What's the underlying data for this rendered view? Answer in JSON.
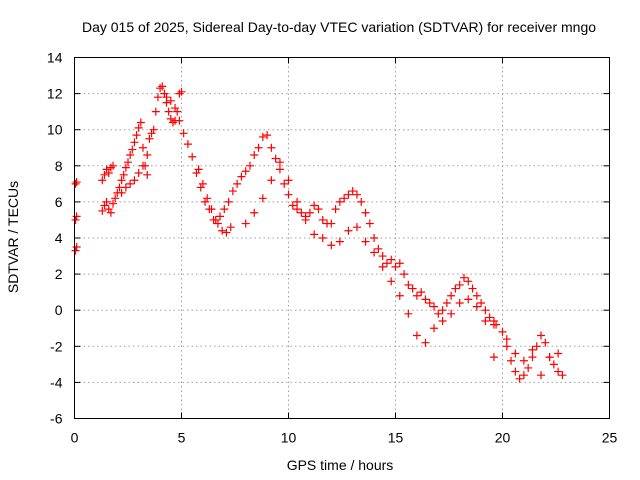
{
  "chart_data": {
    "type": "scatter",
    "title": "Day 015 of 2025, Sidereal Day-to-day VTEC variation (SDTVAR) for receiver mngo",
    "xlabel": "GPS time / hours",
    "ylabel": "SDTVAR / TECUs",
    "xlim": [
      0,
      25
    ],
    "ylim": [
      -6,
      14
    ],
    "xticks": [
      0,
      5,
      10,
      15,
      20,
      25
    ],
    "yticks": [
      -6,
      -4,
      -2,
      0,
      2,
      4,
      6,
      8,
      10,
      12,
      14
    ],
    "xtick_labels": [
      "0",
      "5",
      "10",
      "15",
      "20",
      "25"
    ],
    "ytick_labels": [
      "-6",
      "-4",
      "-2",
      "0",
      "2",
      "4",
      "6",
      "8",
      "10",
      "12",
      "14"
    ],
    "grid": true,
    "marker": "plus",
    "color": "#ff0000",
    "series": [
      {
        "name": "SDTVAR",
        "x": [
          0.05,
          0.1,
          0.05,
          0.1,
          0.05,
          0.1,
          1.3,
          1.4,
          1.5,
          1.6,
          1.7,
          1.8,
          1.3,
          1.4,
          1.5,
          1.6,
          1.7,
          1.8,
          1.9,
          2.0,
          2.1,
          2.2,
          2.3,
          2.4,
          2.5,
          2.6,
          2.7,
          2.8,
          2.9,
          3.0,
          3.1,
          3.2,
          3.3,
          3.4,
          2.2,
          2.4,
          2.6,
          2.8,
          3.0,
          3.2,
          3.4,
          3.5,
          3.6,
          3.7,
          3.8,
          3.9,
          4.0,
          4.1,
          4.2,
          4.3,
          4.4,
          4.5,
          4.6,
          4.7,
          4.8,
          4.9,
          5.0,
          4.3,
          4.5,
          4.7,
          4.9,
          5.1,
          5.3,
          5.5,
          5.7,
          5.9,
          6.1,
          6.3,
          6.5,
          6.7,
          6.9,
          7.1,
          7.3,
          5.8,
          6.0,
          6.2,
          6.4,
          6.6,
          6.8,
          7.0,
          7.2,
          7.4,
          7.6,
          7.8,
          8.0,
          8.2,
          8.4,
          8.6,
          8.8,
          9.0,
          9.2,
          9.4,
          9.6,
          9.8,
          10.0,
          10.2,
          10.4,
          10.6,
          10.8,
          11.0,
          11.2,
          11.4,
          11.6,
          11.8,
          12.0,
          12.2,
          12.4,
          12.6,
          12.8,
          13.0,
          13.2,
          13.4,
          13.6,
          13.8,
          14.0,
          14.2,
          14.4,
          14.6,
          14.8,
          15.0,
          15.2,
          15.4,
          15.6,
          15.8,
          16.0,
          16.2,
          16.4,
          16.6,
          16.8,
          17.0,
          17.2,
          17.4,
          17.6,
          17.8,
          18.0,
          18.2,
          18.4,
          18.6,
          18.8,
          19.0,
          19.2,
          19.4,
          19.6,
          19.7,
          8.0,
          8.4,
          8.8,
          9.2,
          9.6,
          10.0,
          10.4,
          10.8,
          11.2,
          11.6,
          12.0,
          12.4,
          12.8,
          13.2,
          13.6,
          14.0,
          14.4,
          14.8,
          15.2,
          15.6,
          16.0,
          16.4,
          16.8,
          17.2,
          17.6,
          18.0,
          18.4,
          18.8,
          19.2,
          19.6,
          19.6,
          20.0,
          20.2,
          20.4,
          20.6,
          20.8,
          21.0,
          21.2,
          21.4,
          21.6,
          21.8,
          22.0,
          22.2,
          22.4,
          22.6,
          22.8,
          20.2,
          20.6,
          21.0,
          21.4,
          21.8,
          22.2,
          22.6
        ],
        "y": [
          7.0,
          7.1,
          5.0,
          5.2,
          3.3,
          3.5,
          7.2,
          7.5,
          7.8,
          7.6,
          7.9,
          8.0,
          5.5,
          5.8,
          6.0,
          5.6,
          5.4,
          5.9,
          6.2,
          6.5,
          6.8,
          7.2,
          7.5,
          7.9,
          8.2,
          8.6,
          8.9,
          9.3,
          9.7,
          10.1,
          10.4,
          9.0,
          8.0,
          7.5,
          6.5,
          6.8,
          7.0,
          7.2,
          7.6,
          8.0,
          8.6,
          9.5,
          9.8,
          10.0,
          11.0,
          11.8,
          12.3,
          12.4,
          12.0,
          11.5,
          11.0,
          10.6,
          10.4,
          10.5,
          11.0,
          12.0,
          12.1,
          11.8,
          11.6,
          11.2,
          10.5,
          9.8,
          9.2,
          8.5,
          7.6,
          6.8,
          6.0,
          5.6,
          5.0,
          4.8,
          4.4,
          4.3,
          4.6,
          7.8,
          7.0,
          6.2,
          5.6,
          5.0,
          5.2,
          5.6,
          6.0,
          6.6,
          7.0,
          7.4,
          7.7,
          8.0,
          8.6,
          9.0,
          9.6,
          9.7,
          9.0,
          8.4,
          7.8,
          7.0,
          6.4,
          5.8,
          5.6,
          5.4,
          5.2,
          5.4,
          5.8,
          5.6,
          5.0,
          4.8,
          4.8,
          5.6,
          6.0,
          6.2,
          6.4,
          6.6,
          6.4,
          6.0,
          5.4,
          4.8,
          4.0,
          3.4,
          3.0,
          2.6,
          2.8,
          2.4,
          2.6,
          2.0,
          1.4,
          1.2,
          0.8,
          1.0,
          0.6,
          0.4,
          0.2,
          -0.2,
          0.0,
          0.4,
          0.8,
          1.2,
          1.4,
          1.8,
          1.6,
          1.2,
          0.8,
          0.4,
          0.0,
          -0.4,
          -0.6,
          -0.8,
          4.8,
          5.4,
          6.2,
          7.2,
          8.2,
          7.2,
          6.0,
          5.0,
          4.2,
          4.0,
          3.6,
          3.8,
          4.4,
          4.6,
          3.8,
          3.2,
          2.4,
          1.6,
          0.8,
          -0.2,
          -1.4,
          -1.8,
          -1.0,
          -0.6,
          -0.2,
          0.4,
          0.6,
          0.2,
          -0.6,
          -2.6,
          -0.8,
          -1.2,
          -2.0,
          -2.8,
          -3.4,
          -3.8,
          -3.6,
          -3.2,
          -2.6,
          -2.0,
          -1.4,
          -1.8,
          -2.6,
          -3.0,
          -3.4,
          -3.6,
          -1.6,
          -2.4,
          -2.8,
          -2.2,
          -3.6,
          -2.6,
          -2.4
        ]
      }
    ]
  }
}
